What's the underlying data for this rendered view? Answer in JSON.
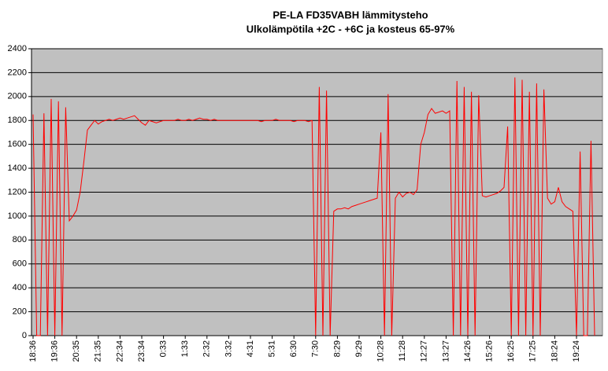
{
  "chart_data": {
    "type": "line",
    "title": "PE-LA FD35VABH lämmitysteho",
    "subtitle": "Ulkolämpötila  +2C - +6C ja kosteus 65-97%",
    "categories": [
      "18:36",
      null,
      null,
      null,
      null,
      null,
      "19:36",
      null,
      null,
      null,
      null,
      null,
      "20:35",
      null,
      null,
      null,
      null,
      null,
      "21:35",
      null,
      null,
      null,
      null,
      null,
      "22:34",
      null,
      null,
      null,
      null,
      null,
      "23:34",
      null,
      null,
      null,
      null,
      null,
      "0:33",
      null,
      null,
      null,
      null,
      null,
      "1:33",
      null,
      null,
      null,
      null,
      null,
      "2:32",
      null,
      null,
      null,
      null,
      null,
      "3:32",
      null,
      null,
      null,
      null,
      null,
      "4:31",
      null,
      null,
      null,
      null,
      null,
      "5:31",
      null,
      null,
      null,
      null,
      null,
      "6:30",
      null,
      null,
      null,
      null,
      null,
      "7:30",
      null,
      null,
      null,
      null,
      null,
      "8:29",
      null,
      null,
      null,
      null,
      null,
      "9:29",
      null,
      null,
      null,
      null,
      null,
      "10:28",
      null,
      null,
      null,
      null,
      null,
      "11:28",
      null,
      null,
      null,
      null,
      null,
      "12:27",
      null,
      null,
      null,
      null,
      null,
      "13:27",
      null,
      null,
      null,
      null,
      null,
      "14:26",
      null,
      null,
      null,
      null,
      null,
      "15:26",
      null,
      null,
      null,
      null,
      null,
      "16:25",
      null,
      null,
      null,
      null,
      null,
      "17:25",
      null,
      null,
      null,
      null,
      null,
      "18:24",
      null,
      null,
      null,
      null,
      null,
      "19:24",
      null,
      null,
      null,
      null,
      null,
      null
    ],
    "series": [
      {
        "name": "lämmitysteho",
        "color": "#ff0000",
        "values": [
          1850,
          0,
          0,
          1860,
          0,
          1980,
          0,
          1960,
          0,
          1910,
          960,
          1000,
          1050,
          1200,
          1450,
          1720,
          1760,
          1800,
          1770,
          1790,
          1800,
          1810,
          1800,
          1810,
          1820,
          1810,
          1820,
          1830,
          1840,
          1810,
          1780,
          1760,
          1800,
          1790,
          1780,
          1790,
          1800,
          1800,
          1800,
          1800,
          1810,
          1800,
          1800,
          1810,
          1800,
          1810,
          1820,
          1810,
          1810,
          1800,
          1810,
          1800,
          1800,
          1800,
          1800,
          1800,
          1800,
          1800,
          1800,
          1800,
          1800,
          1800,
          1800,
          1790,
          1800,
          1800,
          1800,
          1810,
          1800,
          1800,
          1800,
          1800,
          1790,
          1800,
          1800,
          1800,
          1790,
          1800,
          0,
          2080,
          0,
          2050,
          0,
          1040,
          1060,
          1060,
          1070,
          1060,
          1080,
          1090,
          1100,
          1110,
          1120,
          1130,
          1140,
          1150,
          1700,
          0,
          2020,
          0,
          1150,
          1200,
          1160,
          1190,
          1200,
          1180,
          1220,
          1600,
          1700,
          1850,
          1900,
          1860,
          1870,
          1880,
          1860,
          1880,
          0,
          2130,
          0,
          2080,
          0,
          2040,
          0,
          2010,
          1170,
          1160,
          1170,
          1180,
          1190,
          1210,
          1240,
          1750,
          0,
          2160,
          0,
          2140,
          0,
          2040,
          0,
          2110,
          0,
          2060,
          1150,
          1100,
          1120,
          1240,
          1120,
          1080,
          1060,
          1040,
          0,
          1540,
          0,
          0,
          1630,
          0,
          null
        ]
      }
    ],
    "ylim": [
      0,
      2400
    ],
    "yticks": [
      0,
      200,
      400,
      600,
      800,
      1000,
      1200,
      1400,
      1600,
      1800,
      2000,
      2200,
      2400
    ],
    "grid": true,
    "plot_background": "#c0c0c0"
  }
}
